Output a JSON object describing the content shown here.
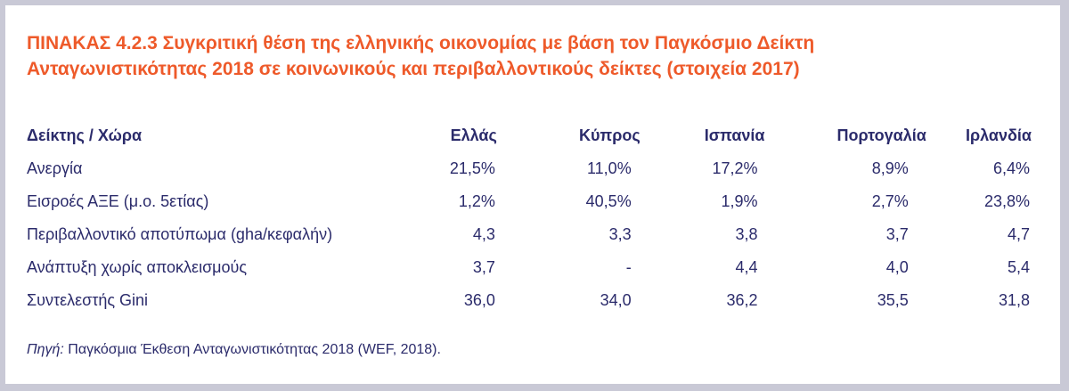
{
  "title": {
    "line1": "ΠΙΝΑΚΑΣ 4.2.3  Συγκριτική θέση της ελληνικής οικονομίας με βάση τον Παγκόσμιο Δείκτη",
    "line2": "Ανταγωνιστικότητας 2018 σε κοινωνικούς και περιβαλλοντικούς δείκτες (στοιχεία 2017)"
  },
  "table": {
    "headers": [
      "Δείκτης / Χώρα",
      "Ελλάς",
      "Κύπρος",
      "Ισπανία",
      "Πορτογαλία",
      "Ιρλανδία"
    ],
    "rows": [
      [
        "Ανεργία",
        "21,5%",
        "11,0%",
        "17,2%",
        "8,9%",
        "6,4%"
      ],
      [
        "Εισροές ΑΞΕ (μ.ο. 5ετίας)",
        "1,2%",
        "40,5%",
        "1,9%",
        "2,7%",
        "23,8%"
      ],
      [
        "Περιβαλλοντικό αποτύπωμα (gha/κεφαλήν)",
        "4,3",
        "3,3",
        "3,8",
        "3,7",
        "4,7"
      ],
      [
        "Ανάπτυξη χωρίς αποκλεισμούς",
        "3,7",
        "-",
        "4,4",
        "4,0",
        "5,4"
      ],
      [
        "Συντελεστής Gini",
        "36,0",
        "34,0",
        "36,2",
        "35,5",
        "31,8"
      ]
    ]
  },
  "source": {
    "label": "Πηγή:",
    "text": " Παγκόσμια Έκθεση Ανταγωνιστικότητας 2018 (WEF, 2018)."
  },
  "colors": {
    "title": "#ee5a2a",
    "text": "#2b2b6b",
    "border": "#c9c9d6",
    "background": "#ffffff"
  }
}
